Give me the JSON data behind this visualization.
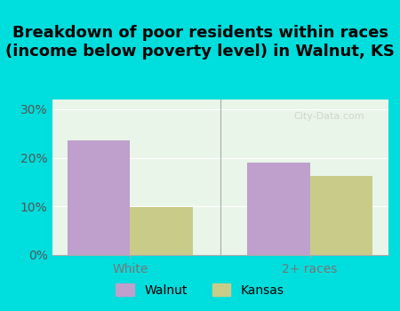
{
  "title": "Breakdown of poor residents within races\n(income below poverty level) in Walnut, KS",
  "categories": [
    "White",
    "2+ races"
  ],
  "walnut_values": [
    23.5,
    19.0
  ],
  "kansas_values": [
    9.8,
    16.2
  ],
  "walnut_color": "#bf9fcc",
  "kansas_color": "#c8cc88",
  "background_outer": "#00dddd",
  "background_inner": "#e8f5e8",
  "ylim": [
    0,
    32
  ],
  "yticks": [
    0,
    10,
    20,
    30
  ],
  "ytick_labels": [
    "0%",
    "10%",
    "20%",
    "30%"
  ],
  "bar_width": 0.35,
  "legend_labels": [
    "Walnut",
    "Kansas"
  ],
  "title_fontsize": 13,
  "legend_fontsize": 10
}
